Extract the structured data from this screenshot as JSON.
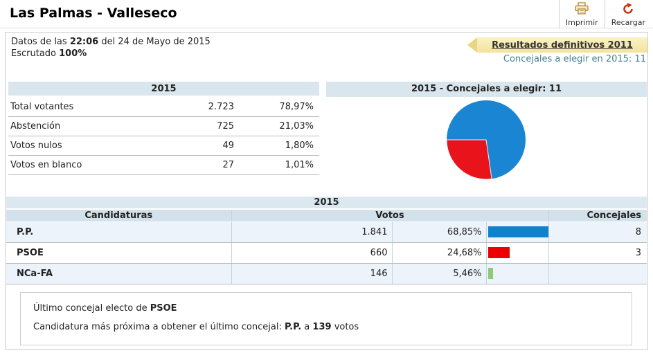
{
  "header": {
    "title": "Las Palmas - Valleseco",
    "actions": {
      "print_label": "Imprimir",
      "reload_label": "Recargar"
    }
  },
  "status": {
    "datos_prefix": "Datos de las",
    "time": "22:06",
    "datos_suffix": "del 24 de Mayo de 2015",
    "escrutado_label": "Escrutado",
    "escrutado_value": "100%"
  },
  "links": {
    "definitive_results": "Resultados definitivos 2011",
    "councillors_note": "Concejales a elegir en 2015: 11"
  },
  "summary_table": {
    "header": "2015",
    "rows": [
      {
        "label": "Total votantes",
        "value": "2.723",
        "pct": "78,97%"
      },
      {
        "label": "Abstención",
        "value": "725",
        "pct": "21,03%"
      },
      {
        "label": "Votos nulos",
        "value": "49",
        "pct": "1,80%"
      },
      {
        "label": "Votos en blanco",
        "value": "27",
        "pct": "1,01%"
      }
    ]
  },
  "pie_panel": {
    "header": "2015 - Concejales a elegir: 11"
  },
  "results_table": {
    "year_header": "2015",
    "columns": {
      "candidaturas": "Candidaturas",
      "votos": "Votos",
      "concejales": "Concejales"
    },
    "rows": [
      {
        "party": "P.P.",
        "votes": "1.841",
        "pct": "68,85%",
        "pct_value": 68.85,
        "bar_color": "#0e82cd",
        "seats": "8"
      },
      {
        "party": "PSOE",
        "votes": "660",
        "pct": "24,68%",
        "pct_value": 24.68,
        "bar_color": "#ee0000",
        "seats": "3"
      },
      {
        "party": "NCa-FA",
        "votes": "146",
        "pct": "5,46%",
        "pct_value": 5.46,
        "bar_color": "#8fca74",
        "seats": ""
      }
    ]
  },
  "note": {
    "line1_prefix": "Último concejal electo de",
    "line1_party": "PSOE",
    "line2_prefix": "Candidatura más próxima a obtener el último concejal:",
    "line2_party": "P.P.",
    "line2_connector": "a",
    "line2_votes": "139",
    "line2_suffix": "votos"
  },
  "chart_data": [
    {
      "type": "pie",
      "title": "2015 - Concejales a elegir: 11",
      "labels": [
        "P.P.",
        "PSOE"
      ],
      "values": [
        8,
        3
      ],
      "colors": [
        "#1a86d3",
        "#e8131b"
      ],
      "note": "seats out of 11 councillors"
    },
    {
      "type": "bar",
      "title": "Votos % por candidatura",
      "categories": [
        "P.P.",
        "PSOE",
        "NCa-FA"
      ],
      "values": [
        68.85,
        24.68,
        5.46
      ],
      "colors": [
        "#0e82cd",
        "#ee0000",
        "#8fca74"
      ],
      "xlim": [
        0,
        100
      ]
    }
  ]
}
